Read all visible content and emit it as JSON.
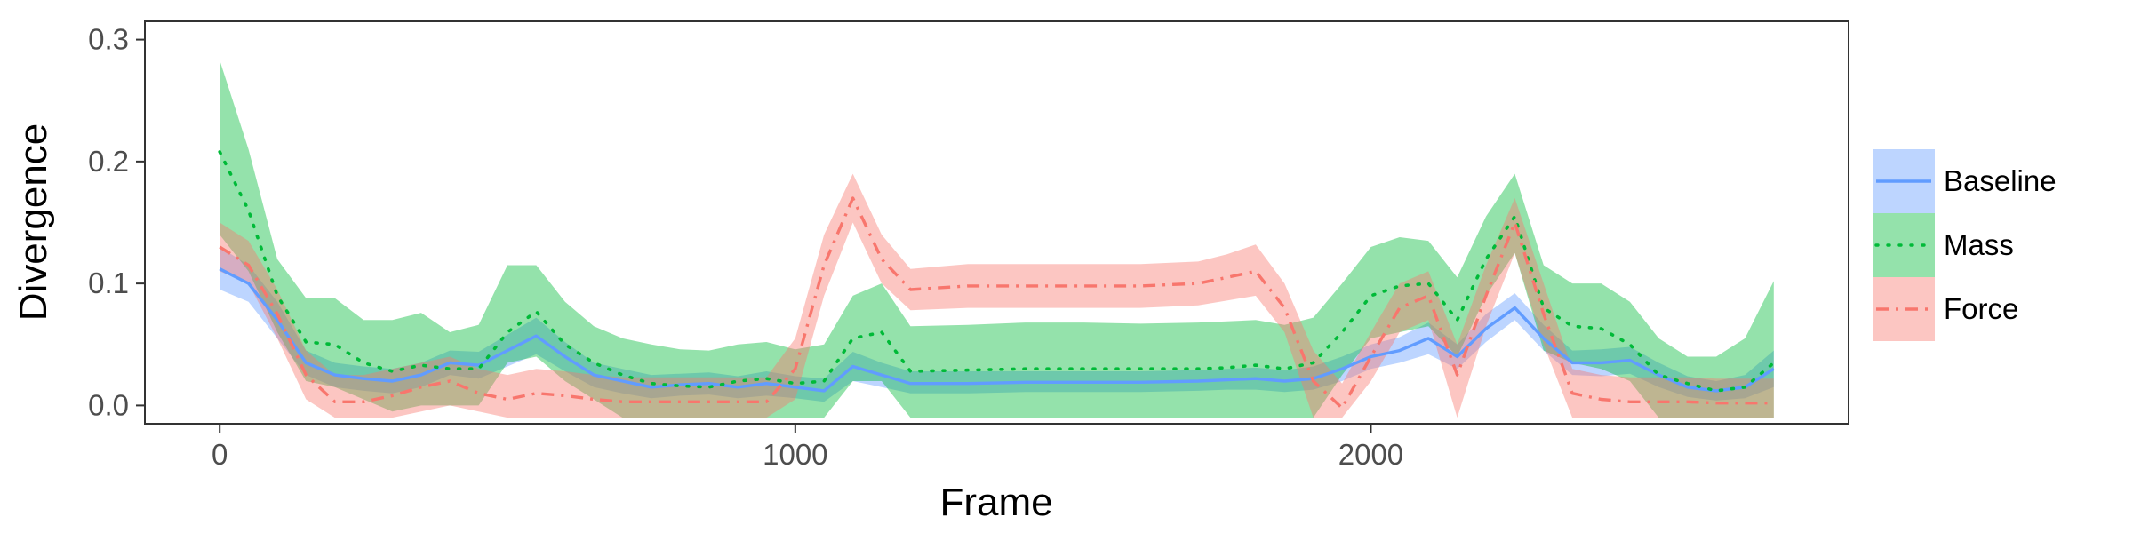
{
  "colors": {
    "baseline": "#619CFF",
    "mass": "#00BA38",
    "force": "#F8766D",
    "panel_border": "#333333",
    "axis_text": "#4d4d4d"
  },
  "chart_data": {
    "type": "line",
    "title": "",
    "xlabel": "Frame",
    "ylabel": "Divergence",
    "xlim": [
      -130,
      2830
    ],
    "ylim": [
      -0.015,
      0.315
    ],
    "xticks": [
      0,
      1000,
      2000
    ],
    "yticks": [
      0.0,
      0.1,
      0.2,
      0.3
    ],
    "xtick_labels": [
      "0",
      "1000",
      "2000"
    ],
    "ytick_labels": [
      "0.0",
      "0.1",
      "0.2",
      "0.3"
    ],
    "grid": false,
    "legend_position": "right",
    "x": [
      0,
      50,
      100,
      150,
      200,
      250,
      300,
      350,
      400,
      450,
      500,
      550,
      600,
      650,
      700,
      750,
      800,
      850,
      900,
      950,
      1000,
      1050,
      1100,
      1150,
      1200,
      1300,
      1400,
      1500,
      1600,
      1700,
      1750,
      1800,
      1850,
      1900,
      1950,
      2000,
      2050,
      2100,
      2150,
      2200,
      2250,
      2300,
      2350,
      2400,
      2450,
      2500,
      2550,
      2600,
      2650,
      2700
    ],
    "series": [
      {
        "name": "Baseline",
        "line_style": "solid",
        "values": [
          0.112,
          0.1,
          0.07,
          0.035,
          0.025,
          0.022,
          0.02,
          0.025,
          0.035,
          0.033,
          0.045,
          0.057,
          0.04,
          0.025,
          0.02,
          0.015,
          0.017,
          0.018,
          0.015,
          0.018,
          0.015,
          0.012,
          0.032,
          0.025,
          0.018,
          0.018,
          0.019,
          0.019,
          0.019,
          0.02,
          0.021,
          0.022,
          0.02,
          0.022,
          0.03,
          0.04,
          0.045,
          0.055,
          0.04,
          0.063,
          0.08,
          0.055,
          0.035,
          0.035,
          0.037,
          0.025,
          0.015,
          0.012,
          0.015,
          0.03
        ],
        "lower": [
          0.095,
          0.085,
          0.055,
          0.025,
          0.015,
          0.012,
          0.01,
          0.015,
          0.025,
          0.022,
          0.032,
          0.042,
          0.028,
          0.015,
          0.01,
          0.006,
          0.008,
          0.009,
          0.006,
          0.008,
          0.006,
          0.003,
          0.02,
          0.015,
          0.01,
          0.01,
          0.011,
          0.011,
          0.011,
          0.012,
          0.013,
          0.013,
          0.011,
          0.013,
          0.02,
          0.03,
          0.035,
          0.042,
          0.03,
          0.052,
          0.07,
          0.045,
          0.025,
          0.024,
          0.026,
          0.015,
          0.007,
          0.004,
          0.006,
          0.015
        ],
        "upper": [
          0.13,
          0.115,
          0.085,
          0.045,
          0.035,
          0.032,
          0.03,
          0.035,
          0.045,
          0.044,
          0.058,
          0.072,
          0.052,
          0.035,
          0.03,
          0.025,
          0.026,
          0.027,
          0.024,
          0.028,
          0.024,
          0.022,
          0.044,
          0.035,
          0.028,
          0.028,
          0.028,
          0.028,
          0.028,
          0.029,
          0.03,
          0.031,
          0.029,
          0.032,
          0.04,
          0.05,
          0.056,
          0.068,
          0.05,
          0.075,
          0.092,
          0.066,
          0.045,
          0.046,
          0.048,
          0.035,
          0.024,
          0.02,
          0.025,
          0.045
        ]
      },
      {
        "name": "Mass",
        "line_style": "dotted",
        "values": [
          0.208,
          0.16,
          0.09,
          0.052,
          0.05,
          0.035,
          0.028,
          0.033,
          0.03,
          0.03,
          0.06,
          0.077,
          0.05,
          0.035,
          0.025,
          0.018,
          0.016,
          0.015,
          0.02,
          0.022,
          0.018,
          0.02,
          0.055,
          0.06,
          0.028,
          0.029,
          0.03,
          0.03,
          0.03,
          0.03,
          0.031,
          0.033,
          0.03,
          0.035,
          0.06,
          0.09,
          0.098,
          0.1,
          0.07,
          0.12,
          0.155,
          0.08,
          0.065,
          0.063,
          0.05,
          0.025,
          0.018,
          0.012,
          0.015,
          0.035
        ],
        "lower": [
          0.14,
          0.11,
          0.06,
          0.02,
          0.015,
          0.005,
          -0.005,
          0.0,
          0.0,
          0.0,
          0.035,
          0.04,
          0.02,
          0.005,
          -0.01,
          -0.01,
          -0.01,
          -0.01,
          -0.01,
          -0.01,
          -0.01,
          -0.01,
          0.02,
          0.02,
          -0.01,
          -0.01,
          -0.01,
          -0.01,
          -0.01,
          -0.01,
          -0.01,
          -0.01,
          -0.01,
          -0.01,
          0.025,
          0.055,
          0.06,
          0.065,
          0.04,
          0.09,
          0.125,
          0.045,
          0.035,
          0.03,
          0.02,
          -0.01,
          -0.01,
          -0.01,
          -0.01,
          -0.01
        ],
        "upper": [
          0.283,
          0.21,
          0.12,
          0.088,
          0.088,
          0.07,
          0.07,
          0.076,
          0.06,
          0.066,
          0.115,
          0.115,
          0.085,
          0.065,
          0.055,
          0.05,
          0.046,
          0.045,
          0.05,
          0.052,
          0.046,
          0.05,
          0.09,
          0.1,
          0.065,
          0.066,
          0.068,
          0.068,
          0.067,
          0.068,
          0.069,
          0.07,
          0.066,
          0.072,
          0.1,
          0.13,
          0.138,
          0.135,
          0.105,
          0.155,
          0.19,
          0.115,
          0.1,
          0.1,
          0.085,
          0.055,
          0.04,
          0.04,
          0.055,
          0.102
        ]
      },
      {
        "name": "Force",
        "line_style": "dashdot",
        "values": [
          0.13,
          0.115,
          0.075,
          0.025,
          0.003,
          0.003,
          0.008,
          0.015,
          0.02,
          0.01,
          0.005,
          0.01,
          0.008,
          0.005,
          0.003,
          0.003,
          0.003,
          0.003,
          0.003,
          0.003,
          0.03,
          0.115,
          0.17,
          0.12,
          0.095,
          0.098,
          0.098,
          0.098,
          0.098,
          0.1,
          0.105,
          0.11,
          0.08,
          0.02,
          -0.002,
          0.04,
          0.08,
          0.09,
          0.025,
          0.09,
          0.15,
          0.075,
          0.01,
          0.005,
          0.003,
          0.003,
          0.003,
          0.002,
          0.002,
          0.002
        ],
        "lower": [
          0.11,
          0.1,
          0.055,
          0.005,
          -0.01,
          -0.01,
          -0.01,
          -0.005,
          0.0,
          -0.005,
          -0.01,
          -0.01,
          -0.01,
          -0.01,
          -0.01,
          -0.01,
          -0.01,
          -0.01,
          -0.01,
          -0.01,
          0.005,
          0.09,
          0.15,
          0.1,
          0.078,
          0.08,
          0.08,
          0.08,
          0.08,
          0.082,
          0.086,
          0.09,
          0.06,
          -0.01,
          -0.01,
          0.02,
          0.06,
          0.07,
          -0.01,
          0.065,
          0.125,
          0.05,
          -0.01,
          -0.01,
          -0.01,
          -0.01,
          -0.01,
          -0.01,
          -0.01,
          -0.01
        ],
        "upper": [
          0.15,
          0.135,
          0.095,
          0.045,
          0.025,
          0.025,
          0.03,
          0.035,
          0.04,
          0.03,
          0.025,
          0.03,
          0.028,
          0.025,
          0.023,
          0.023,
          0.023,
          0.023,
          0.023,
          0.023,
          0.055,
          0.14,
          0.19,
          0.14,
          0.112,
          0.116,
          0.116,
          0.116,
          0.116,
          0.118,
          0.124,
          0.132,
          0.1,
          0.045,
          0.018,
          0.06,
          0.1,
          0.11,
          0.05,
          0.115,
          0.17,
          0.1,
          0.03,
          0.025,
          0.023,
          0.023,
          0.023,
          0.022,
          0.022,
          0.022
        ]
      }
    ]
  }
}
